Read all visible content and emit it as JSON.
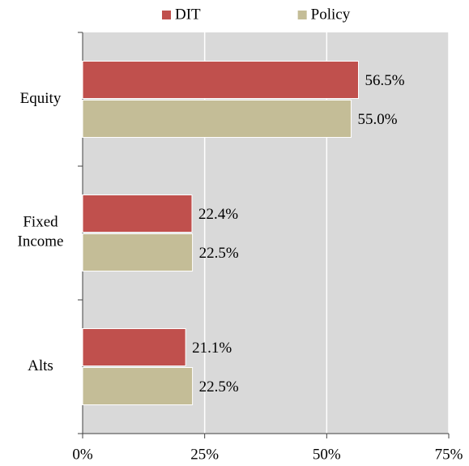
{
  "chart_data": {
    "type": "hbar",
    "categories": [
      "Equity",
      "Fixed Income",
      "Alts"
    ],
    "series": [
      {
        "name": "DIT",
        "color": "#c0504d",
        "values": [
          56.5,
          22.4,
          21.1
        ],
        "value_labels": [
          "56.5%",
          "22.4%",
          "21.1%"
        ]
      },
      {
        "name": "Policy",
        "color": "#c4bd97",
        "values": [
          55.0,
          22.5,
          22.5
        ],
        "value_labels": [
          "55.0%",
          "22.5%",
          "22.5%"
        ]
      }
    ],
    "xlim": [
      0,
      75
    ],
    "xticks": [
      {
        "value": 0,
        "label": "0%"
      },
      {
        "value": 25,
        "label": "25%"
      },
      {
        "value": 50,
        "label": "50%"
      },
      {
        "value": 75,
        "label": "75%"
      }
    ],
    "grid": true,
    "legend": "top",
    "plot_background": "#d9d9d9"
  }
}
